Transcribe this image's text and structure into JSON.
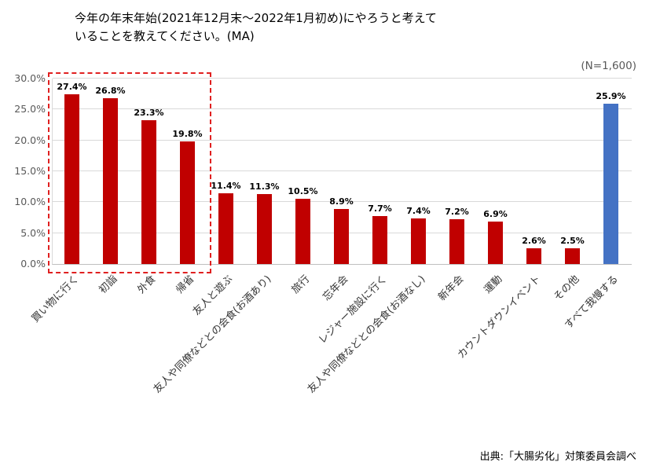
{
  "header": {
    "title_line1": "今年の年末年始(2021年12月末〜2022年1月初め)にやろうと考えて",
    "title_line2": "いることを教えてください。(MA)",
    "sample_size": "(N=1,600)"
  },
  "footer": {
    "source": "出典:「大腸劣化」対策委員会調べ"
  },
  "chart_data": {
    "type": "bar",
    "title": "今年の年末年始(2021年12月末〜2022年1月初め)にやろうと考えていることを教えてください。(MA)",
    "categories": [
      "買い物に行く",
      "初詣",
      "外食",
      "帰省",
      "友人と遊ぶ",
      "友人や同僚などとの会食(お酒あり)",
      "旅行",
      "忘年会",
      "レジャー施設に行く",
      "友人や同僚などとの会食(お酒なし)",
      "新年会",
      "運動",
      "カウントダウンイベント",
      "その他",
      "すべて我慢する"
    ],
    "values": [
      27.4,
      26.8,
      23.3,
      19.8,
      11.4,
      11.3,
      10.5,
      8.9,
      7.7,
      7.4,
      7.2,
      6.9,
      2.6,
      2.5,
      25.9
    ],
    "value_labels": [
      "27.4%",
      "26.8%",
      "23.3%",
      "19.8%",
      "11.4%",
      "11.3%",
      "10.5%",
      "8.9%",
      "7.7%",
      "7.4%",
      "7.2%",
      "6.9%",
      "2.6%",
      "2.5%",
      "25.9%"
    ],
    "xlabel": "",
    "ylabel": "",
    "ylim": [
      0,
      30
    ],
    "yticks": [
      "30.0%",
      "25.0%",
      "20.0%",
      "15.0%",
      "10.0%",
      "5.0%",
      "0.0%"
    ],
    "grid": "horizontal",
    "legend": "none",
    "bar_color": "#c00000",
    "special_last_bar_color": "#4472c4",
    "highlight_box": {
      "bars_enclosed": 4,
      "border_color": "#e02020",
      "style": "dashed"
    }
  }
}
